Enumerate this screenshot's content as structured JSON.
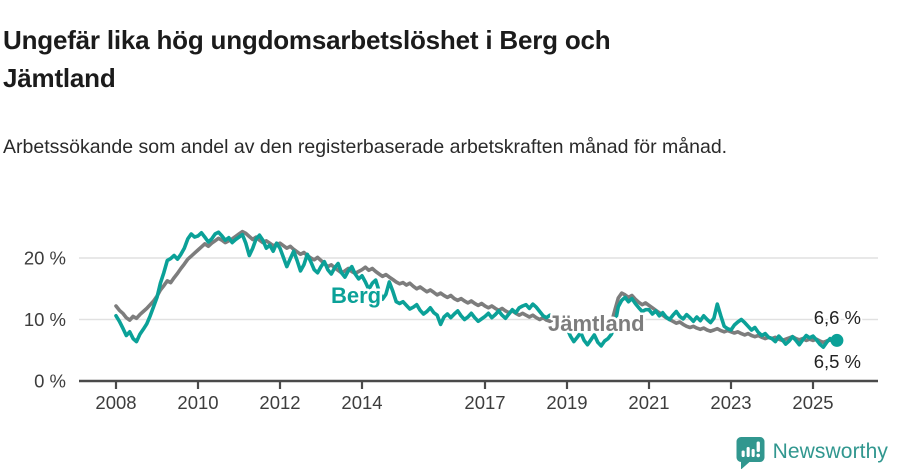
{
  "header": {
    "title": "Ungefär lika hög ungdomsarbetslöshet i Berg och Jämtland",
    "subtitle": "Arbetssökande som andel av den registerbaserade arbetskraften månad för månad."
  },
  "footer": {
    "brand": "Newsworthy",
    "logo_icon": "newsworthy-speech-bubble-bar-chart-icon"
  },
  "colors": {
    "berg_line": "#0ba198",
    "jamtland_line": "#7d7d7d",
    "gridline": "#e1e1e1",
    "axis": "#4a4a4a",
    "axis_text": "#3d3d3d",
    "value_label_text": "#222222",
    "brand_teal": "#31978f"
  },
  "chart_data": {
    "type": "line",
    "title": "Ungefär lika hög ungdomsarbetslöshet i Berg och Jämtland",
    "subtitle": "Arbetssökande som andel av den registerbaserade arbetskraften månad för månad.",
    "frequency": "monthly",
    "x_start": "2008-01",
    "x_end": "2025-08",
    "ylim": [
      0,
      26
    ],
    "grid": "horizontal",
    "legend_position": "inline-labels",
    "x_axis": {
      "ticks": [
        {
          "year": 2008,
          "label": "2008"
        },
        {
          "year": 2010,
          "label": "2010"
        },
        {
          "year": 2012,
          "label": "2012"
        },
        {
          "year": 2014,
          "label": "2014"
        },
        {
          "year": 2017,
          "label": "2017"
        },
        {
          "year": 2019,
          "label": "2019"
        },
        {
          "year": 2021,
          "label": "2021"
        },
        {
          "year": 2023,
          "label": "2023"
        },
        {
          "year": 2025,
          "label": "2025"
        }
      ]
    },
    "y_axis": {
      "ticks": [
        {
          "value": 0,
          "label": "0 %"
        },
        {
          "value": 10,
          "label": "10 %"
        },
        {
          "value": 20,
          "label": "20 %"
        }
      ]
    },
    "series": [
      {
        "name": "Berg",
        "color": "#0ba198",
        "final_value": 6.6,
        "end_label": "6,6 %",
        "marker_end": true,
        "values": [
          10.6,
          9.7,
          8.6,
          7.4,
          8.0,
          6.9,
          6.4,
          7.6,
          8.4,
          9.3,
          10.6,
          12.1,
          13.6,
          15.9,
          17.6,
          19.6,
          19.9,
          20.4,
          19.8,
          20.6,
          21.6,
          23.1,
          23.9,
          23.4,
          23.6,
          24.1,
          23.4,
          22.6,
          23.1,
          23.9,
          24.2,
          23.6,
          22.9,
          23.3,
          22.5,
          23.0,
          23.4,
          23.8,
          22.4,
          20.4,
          21.6,
          23.1,
          23.7,
          22.9,
          21.6,
          22.1,
          21.1,
          22.4,
          21.6,
          20.1,
          18.6,
          19.9,
          21.1,
          19.6,
          17.9,
          18.9,
          20.6,
          19.4,
          18.1,
          17.6,
          18.6,
          19.4,
          18.1,
          17.4,
          18.4,
          19.1,
          17.6,
          16.9,
          17.9,
          18.6,
          17.4,
          16.6,
          17.1,
          16.1,
          14.9,
          15.9,
          16.4,
          14.6,
          13.3,
          14.1,
          16.1,
          14.6,
          12.9,
          12.6,
          12.9,
          12.3,
          11.7,
          12.0,
          12.4,
          11.5,
          10.9,
          11.3,
          11.9,
          11.1,
          10.7,
          9.2,
          10.4,
          10.9,
          10.3,
          10.9,
          11.4,
          10.6,
          10.0,
          10.4,
          11.0,
          10.3,
          9.7,
          10.1,
          10.5,
          11.0,
          10.3,
          10.8,
          11.4,
          10.7,
          10.2,
          10.9,
          11.6,
          11.1,
          11.9,
          12.2,
          12.4,
          11.8,
          12.5,
          12.0,
          11.3,
          10.6,
          10.3,
          10.7,
          10.4,
          9.9,
          10.5,
          10.0,
          8.6,
          7.3,
          6.4,
          7.1,
          7.9,
          6.6,
          5.9,
          6.7,
          7.5,
          6.3,
          5.7,
          6.5,
          6.9,
          7.6,
          9.1,
          12.1,
          13.1,
          13.6,
          12.9,
          13.4,
          12.6,
          11.9,
          11.3,
          11.6,
          11.6,
          10.9,
          11.4,
          10.6,
          11.1,
          10.4,
          10.0,
          10.7,
          11.3,
          10.5,
          10.1,
          10.8,
          10.3,
          9.7,
          10.4,
          9.8,
          10.6,
          10.0,
          9.5,
          10.2,
          12.5,
          10.6,
          8.9,
          8.5,
          8.3,
          9.1,
          9.6,
          10.0,
          9.5,
          8.9,
          8.3,
          8.7,
          7.9,
          7.4,
          7.7,
          7.1,
          6.9,
          6.4,
          7.3,
          6.7,
          6.0,
          6.5,
          7.2,
          6.6,
          5.9,
          6.7,
          7.4,
          7.0,
          7.3,
          6.7,
          6.0,
          5.5,
          6.3,
          6.9,
          6.4,
          6.6
        ]
      },
      {
        "name": "Jämtland",
        "color": "#7d7d7d",
        "final_value": 6.5,
        "end_label": "6,5 %",
        "marker_end": false,
        "values": [
          12.2,
          11.5,
          11.0,
          10.3,
          9.9,
          10.5,
          10.2,
          10.8,
          11.3,
          11.8,
          12.4,
          13.0,
          13.8,
          14.8,
          15.5,
          16.3,
          16.0,
          16.8,
          17.5,
          18.3,
          19.0,
          19.8,
          20.3,
          20.8,
          21.3,
          21.8,
          22.3,
          21.9,
          22.4,
          22.8,
          23.2,
          22.9,
          22.5,
          22.8,
          23.1,
          23.5,
          23.9,
          24.3,
          24.0,
          23.5,
          23.0,
          23.4,
          22.9,
          22.5,
          22.8,
          22.4,
          22.0,
          22.2,
          22.4,
          22.0,
          21.6,
          21.9,
          21.4,
          21.0,
          20.6,
          20.9,
          20.4,
          20.0,
          19.7,
          20.1,
          19.6,
          19.1,
          18.6,
          18.9,
          18.4,
          18.0,
          17.6,
          17.9,
          18.3,
          17.8,
          17.5,
          17.8,
          18.1,
          18.5,
          18.0,
          18.3,
          17.8,
          17.4,
          17.0,
          17.3,
          16.9,
          16.5,
          16.1,
          15.8,
          16.0,
          15.6,
          15.9,
          15.4,
          15.0,
          15.3,
          14.9,
          14.5,
          14.8,
          14.4,
          14.0,
          14.3,
          13.9,
          13.6,
          13.9,
          13.4,
          13.1,
          13.4,
          13.0,
          12.7,
          13.0,
          12.6,
          12.3,
          12.6,
          12.2,
          11.9,
          12.2,
          11.8,
          11.5,
          11.8,
          11.4,
          11.1,
          11.4,
          11.0,
          10.7,
          11.0,
          10.7,
          10.4,
          10.7,
          10.3,
          10.0,
          10.3,
          9.9,
          9.7,
          10.0,
          9.6,
          9.2,
          9.5,
          9.3,
          9.0,
          9.3,
          8.9,
          8.7,
          9.0,
          8.7,
          8.5,
          8.8,
          8.5,
          8.3,
          8.6,
          8.9,
          9.4,
          11.5,
          13.5,
          14.3,
          14.0,
          13.6,
          13.9,
          13.3,
          12.8,
          12.4,
          12.7,
          12.3,
          11.9,
          11.5,
          11.1,
          10.7,
          10.3,
          10.0,
          9.7,
          9.4,
          9.6,
          9.2,
          8.9,
          8.7,
          8.9,
          8.6,
          8.4,
          8.6,
          8.3,
          8.1,
          8.3,
          8.5,
          8.2,
          8.0,
          8.2,
          8.0,
          7.8,
          8.0,
          7.7,
          7.5,
          7.7,
          7.4,
          7.2,
          7.4,
          7.1,
          6.9,
          7.1,
          6.9,
          7.1,
          6.8,
          6.6,
          6.8,
          7.0,
          7.2,
          6.9,
          6.7,
          6.9,
          6.6,
          6.8,
          6.6,
          6.8,
          6.5,
          6.3,
          6.5,
          6.7,
          6.4,
          6.5
        ]
      }
    ]
  }
}
